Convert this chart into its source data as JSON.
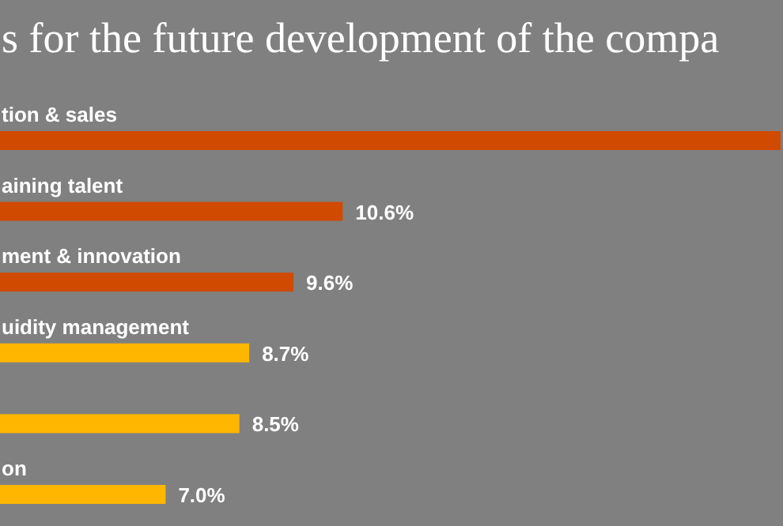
{
  "chart_data": {
    "type": "bar",
    "orientation": "horizontal",
    "title": "s for the future development of the compa",
    "categories": [
      "tion & sales",
      "aining talent",
      "ment & innovation",
      "uidity management",
      null,
      "on"
    ],
    "values": [
      19.5,
      10.6,
      9.6,
      8.7,
      8.5,
      7.0
    ],
    "colors": [
      "#d04a02",
      "#d04a02",
      "#d04a02",
      "#ffb600",
      "#ffb600",
      "#ffb600"
    ],
    "value_labels": [
      null,
      "10.6%",
      "9.6%",
      "8.7%",
      "8.5%",
      "7.0%"
    ]
  }
}
